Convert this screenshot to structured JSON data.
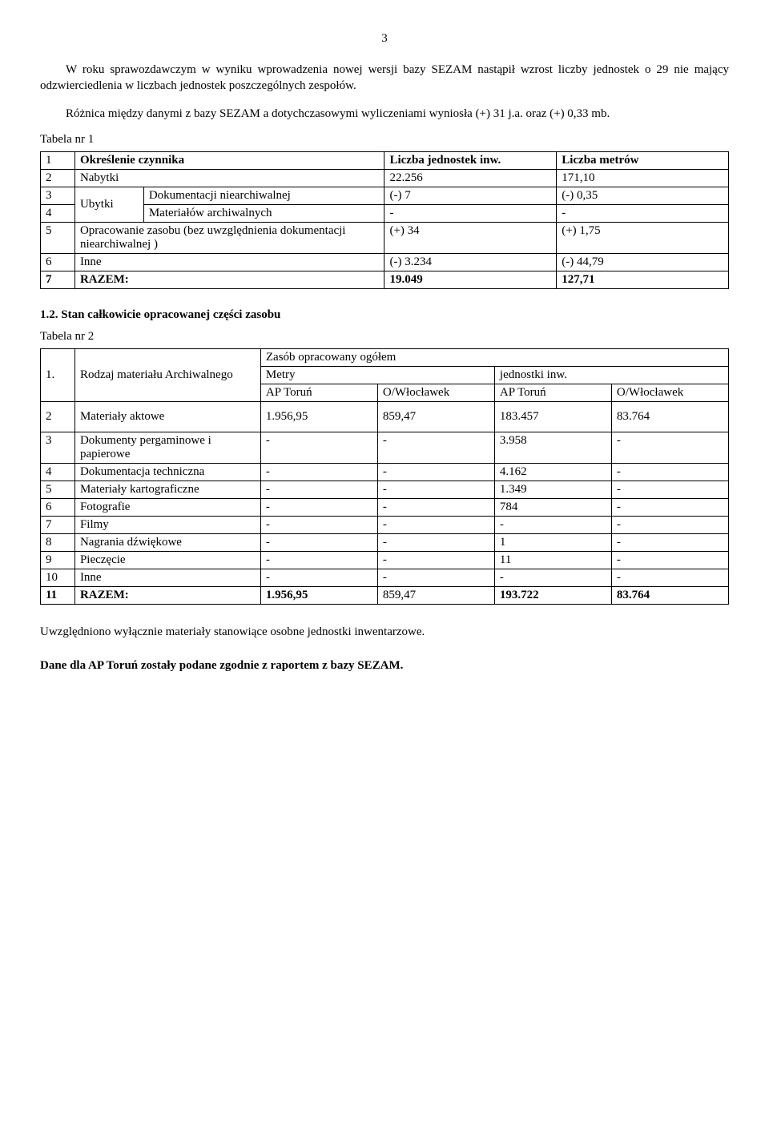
{
  "pageNumber": "3",
  "para1": "W roku sprawozdawczym w wyniku wprowadzenia nowej wersji bazy SEZAM nastąpił wzrost liczby jednostek o 29 nie mający odzwierciedlenia w liczbach jednostek poszczególnych zespołów.",
  "para2": "Różnica między danymi z bazy SEZAM a dotychczasowymi wyliczeniami wyniosła (+) 31 j.a. oraz (+) 0,33 mb.",
  "table1": {
    "label": "Tabela nr 1",
    "header": {
      "c1": "1",
      "c2": "Określenie czynnika",
      "c3": "Liczba jednostek inw.",
      "c4": "Liczba metrów"
    },
    "r2": {
      "c1": "2",
      "c2": "Nabytki",
      "c3": "22.256",
      "c4": "171,10"
    },
    "r3": {
      "c1": "3",
      "merge": "Ubytki",
      "c2b": "Dokumentacji niearchiwalnej",
      "c3": "(-) 7",
      "c4": "(-) 0,35"
    },
    "r4": {
      "c1": "4",
      "c2b": "Materiałów archiwalnych",
      "c3": "-",
      "c4": "-"
    },
    "r5": {
      "c1": "5",
      "c2": "Opracowanie zasobu (bez uwzględnienia dokumentacji niearchiwalnej )",
      "c3": "(+) 34",
      "c4": "(+) 1,75"
    },
    "r6": {
      "c1": "6",
      "c2": "Inne",
      "c3": "(-) 3.234",
      "c4": "(-) 44,79"
    },
    "r7": {
      "c1": "7",
      "c2": "RAZEM:",
      "c3": "19.049",
      "c4": "127,71"
    }
  },
  "sectionHeading": "1.2. Stan całkowicie opracowanej części zasobu",
  "table2": {
    "label": "Tabela nr 2",
    "h_c1": "1.",
    "h_c2": "Rodzaj materiału Archiwalnego",
    "h_top": "Zasób opracowany ogółem",
    "h_m": "Metry",
    "h_j": "jednostki inw.",
    "h_ap": "AP Toruń",
    "h_ow": "O/Włocławek",
    "rows": [
      {
        "c1": "2",
        "c2": "Materiały aktowe",
        "c3": "1.956,95",
        "c4": "859,47",
        "c5": "183.457",
        "c6": "83.764"
      },
      {
        "c1": "3",
        "c2": "Dokumenty pergaminowe i papierowe",
        "c3": "-",
        "c4": "-",
        "c5": "3.958",
        "c6": "-"
      },
      {
        "c1": "4",
        "c2": "Dokumentacja techniczna",
        "c3": "-",
        "c4": "-",
        "c5": "4.162",
        "c6": "-"
      },
      {
        "c1": "5",
        "c2": "Materiały kartograficzne",
        "c3": "-",
        "c4": "-",
        "c5": "1.349",
        "c6": "-"
      },
      {
        "c1": "6",
        "c2": "Fotografie",
        "c3": "-",
        "c4": "-",
        "c5": "784",
        "c6": "-"
      },
      {
        "c1": "7",
        "c2": "Filmy",
        "c3": "-",
        "c4": "-",
        "c5": "-",
        "c6": "-"
      },
      {
        "c1": "8",
        "c2": "Nagrania dźwiękowe",
        "c3": "-",
        "c4": "-",
        "c5": "1",
        "c6": "-"
      },
      {
        "c1": "9",
        "c2": "Pieczęcie",
        "c3": "-",
        "c4": "-",
        "c5": "11",
        "c6": "-"
      },
      {
        "c1": "10",
        "c2": "Inne",
        "c3": "-",
        "c4": "-",
        "c5": "-",
        "c6": "-"
      }
    ],
    "total": {
      "c1": "11",
      "c2": "RAZEM:",
      "c3": "1.956,95",
      "c4": "859,47",
      "c5": "193.722",
      "c6": "83.764"
    }
  },
  "footnote": "Uwzględniono wyłącznie materiały stanowiące osobne jednostki inwentarzowe.",
  "bottomNote": "Dane dla AP Toruń zostały podane zgodnie z raportem z bazy SEZAM."
}
